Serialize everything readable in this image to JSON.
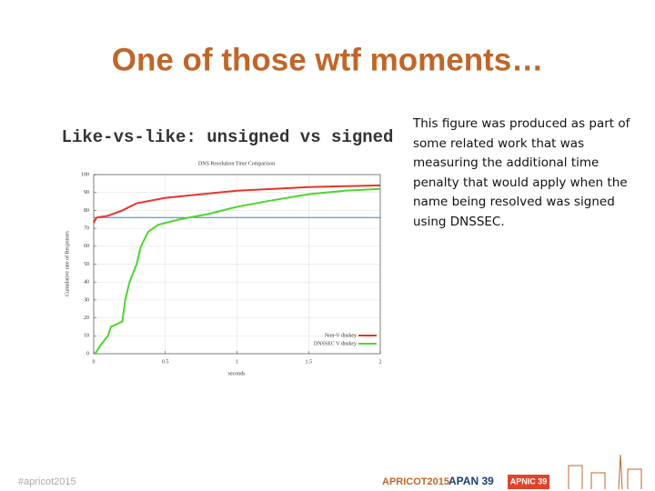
{
  "slide": {
    "title": "One of those wtf moments…",
    "subtitle": "Like-vs-like: unsigned vs signed",
    "body": "This figure was produced as part of some related work that was measuring the additional time penalty that would apply when the name being resolved was signed using DNSSEC.",
    "footer": {
      "hashtag": "#apricot2015",
      "logos": [
        "APRICOT2015",
        "APAN 39",
        "APNIC 39"
      ]
    }
  },
  "chart_data": {
    "type": "line",
    "title": "DNS Resolution Time Comparison",
    "x_label": "seconds",
    "y_label": "Cumulative rate of Responses",
    "xlim": [
      0,
      2
    ],
    "ylim": [
      0,
      100
    ],
    "xticks": [
      0,
      0.5,
      1,
      1.5,
      2
    ],
    "yticks": [
      0,
      10,
      20,
      30,
      40,
      50,
      60,
      70,
      80,
      90,
      100
    ],
    "grid": true,
    "legend": "lower right",
    "hlines": [
      {
        "value": 76,
        "color": "#3a7fc1"
      }
    ],
    "series": [
      {
        "name": "Non-V dnskey",
        "color": "#e8332a",
        "x": [
          0,
          0.02,
          0.1,
          0.2,
          0.3,
          0.5,
          0.75,
          1,
          1.25,
          1.5,
          1.75,
          2
        ],
        "values": [
          73,
          76,
          77,
          80,
          84,
          87,
          89,
          91,
          92,
          93,
          93.5,
          94
        ]
      },
      {
        "name": "DNSSEC V dnskey",
        "color": "#4dd62e",
        "x": [
          0.01,
          0.05,
          0.1,
          0.12,
          0.2,
          0.22,
          0.25,
          0.3,
          0.33,
          0.38,
          0.45,
          0.6,
          0.8,
          1,
          1.2,
          1.5,
          1.75,
          2
        ],
        "values": [
          0,
          5,
          10,
          15,
          18,
          30,
          40,
          50,
          60,
          68,
          72,
          75,
          78,
          82,
          85,
          89,
          91,
          92
        ]
      }
    ]
  }
}
